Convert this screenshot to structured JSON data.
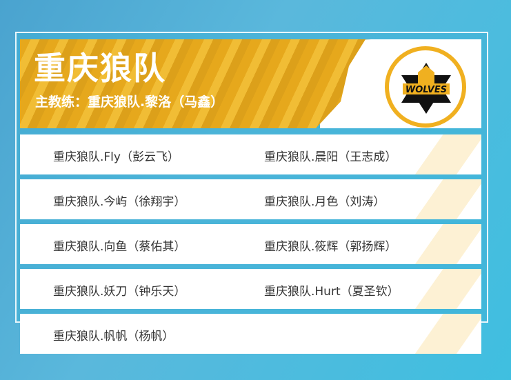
{
  "team": {
    "name": "重庆狼队",
    "coach": "主教练：重庆狼队.黎洛（马鑫）",
    "logo_text": "WOLVES"
  },
  "players": [
    [
      "重庆狼队.Fly（彭云飞）",
      "重庆狼队.晨阳（王志成）"
    ],
    [
      "重庆狼队.今屿（徐翔宇）",
      "重庆狼队.月色（刘涛）"
    ],
    [
      "重庆狼队.向鱼（蔡佑其）",
      "重庆狼队.筱辉（郭扬辉）"
    ],
    [
      "重庆狼队.妖刀（钟乐天）",
      "重庆狼队.Hurt（夏圣钦）"
    ],
    [
      "重庆狼队.帆帆（杨帆）",
      ""
    ]
  ],
  "colors": {
    "accent": "#f0b020",
    "background": "#45b5d6"
  }
}
